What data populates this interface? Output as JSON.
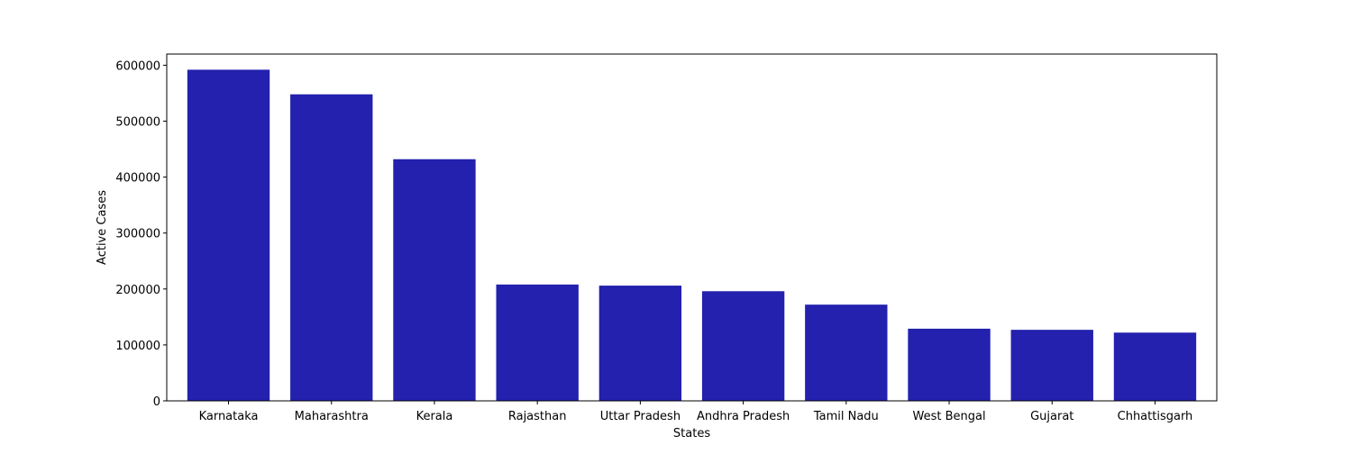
{
  "chart_data": {
    "type": "bar",
    "title": "",
    "xlabel": "States",
    "ylabel": "Active Cases",
    "categories": [
      "Karnataka",
      "Maharashtra",
      "Kerala",
      "Rajasthan",
      "Uttar Pradesh",
      "Andhra Pradesh",
      "Tamil Nadu",
      "West Bengal",
      "Gujarat",
      "Chhattisgarh"
    ],
    "values": [
      592000,
      548000,
      432000,
      208000,
      206000,
      196000,
      172000,
      129000,
      127000,
      122000
    ],
    "ylim": [
      0,
      620000
    ],
    "yticks": [
      0,
      100000,
      200000,
      300000,
      400000,
      500000,
      600000
    ],
    "ytick_labels": [
      "0",
      "100000",
      "200000",
      "300000",
      "400000",
      "500000",
      "600000"
    ],
    "bar_color": "#2321ad",
    "grid": false,
    "legend": "none"
  }
}
